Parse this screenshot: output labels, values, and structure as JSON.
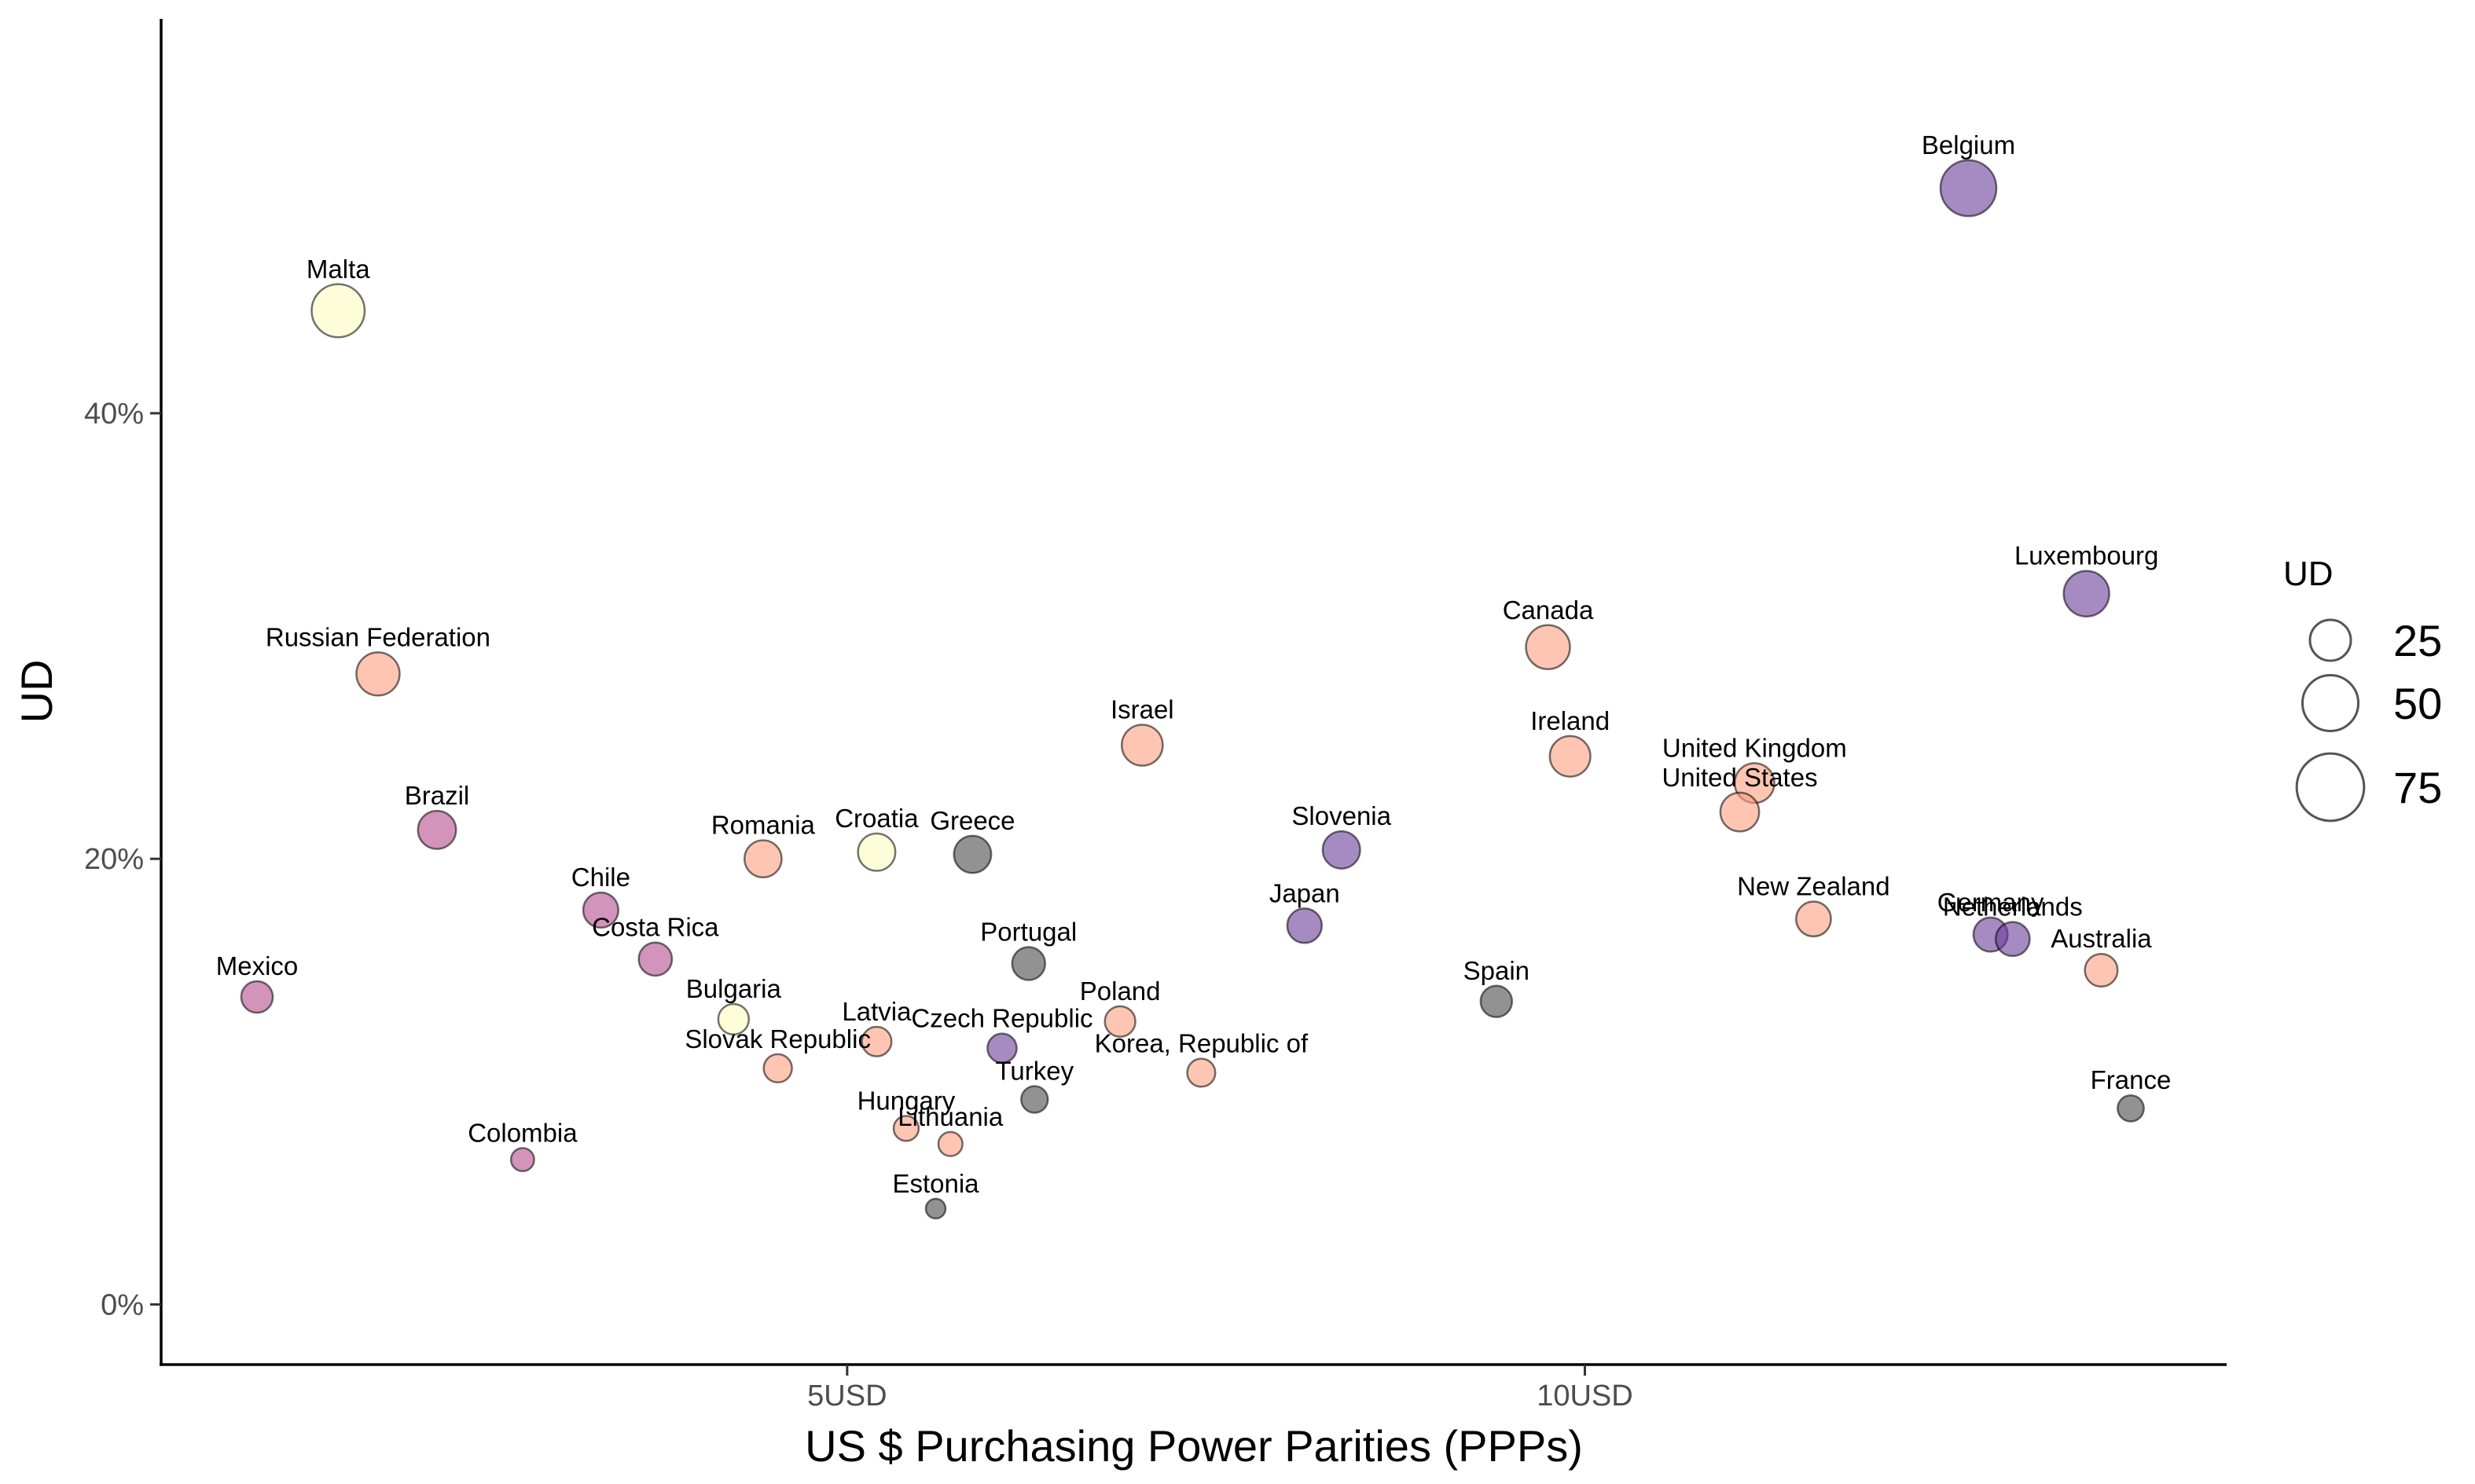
{
  "chart_data": {
    "type": "scatter",
    "xlabel": "US $ Purchasing Power Parities (PPPs)",
    "ylabel": "UD",
    "xlim": [
      0.35,
      14.35
    ],
    "ylim": [
      -2.7,
      57.7
    ],
    "x_ticks": [
      {
        "value": 5,
        "label": "5USD"
      },
      {
        "value": 10,
        "label": "10USD"
      }
    ],
    "y_ticks": [
      {
        "value": 0,
        "label": "0%"
      },
      {
        "value": 20,
        "label": "20%"
      },
      {
        "value": 40,
        "label": "40%"
      }
    ],
    "grid": false,
    "legend": {
      "title": "UD",
      "placement": "right",
      "entries": [
        {
          "value": 25,
          "label": "25"
        },
        {
          "value": 50,
          "label": "50"
        },
        {
          "value": 75,
          "label": "75"
        }
      ]
    },
    "colors": {
      "dark": "#4a4a4a",
      "purple": "#6b3d9a",
      "magenta": "#b44c8c",
      "salmon": "#fc9e7f",
      "cream": "#fcfdbf"
    },
    "points": [
      {
        "label": "Belgium",
        "x": 12.6,
        "y": 50.1,
        "color": "purple"
      },
      {
        "label": "Malta",
        "x": 1.55,
        "y": 44.6,
        "color": "cream"
      },
      {
        "label": "Luxembourg",
        "x": 13.4,
        "y": 31.9,
        "color": "purple"
      },
      {
        "label": "Canada",
        "x": 9.75,
        "y": 29.5,
        "color": "salmon"
      },
      {
        "label": "Russian Federation",
        "x": 1.82,
        "y": 28.3,
        "color": "salmon"
      },
      {
        "label": "Israel",
        "x": 7.0,
        "y": 25.1,
        "color": "salmon"
      },
      {
        "label": "Ireland",
        "x": 9.9,
        "y": 24.6,
        "color": "salmon"
      },
      {
        "label": "United Kingdom",
        "x": 11.15,
        "y": 23.4,
        "color": "salmon"
      },
      {
        "label": "United States",
        "x": 11.05,
        "y": 22.1,
        "color": "salmon"
      },
      {
        "label": "Brazil",
        "x": 2.22,
        "y": 21.3,
        "color": "magenta"
      },
      {
        "label": "Slovenia",
        "x": 8.35,
        "y": 20.4,
        "color": "purple"
      },
      {
        "label": "Croatia",
        "x": 5.2,
        "y": 20.3,
        "color": "cream"
      },
      {
        "label": "Greece",
        "x": 5.85,
        "y": 20.2,
        "color": "dark"
      },
      {
        "label": "Romania",
        "x": 4.43,
        "y": 20.0,
        "color": "salmon"
      },
      {
        "label": "Chile",
        "x": 3.33,
        "y": 17.7,
        "color": "magenta"
      },
      {
        "label": "New Zealand",
        "x": 11.55,
        "y": 17.3,
        "color": "salmon"
      },
      {
        "label": "Japan",
        "x": 8.1,
        "y": 17.0,
        "color": "purple"
      },
      {
        "label": "Germany",
        "x": 12.75,
        "y": 16.6,
        "color": "purple"
      },
      {
        "label": "Netherlands",
        "x": 12.9,
        "y": 16.4,
        "color": "purple"
      },
      {
        "label": "Costa Rica",
        "x": 3.7,
        "y": 15.5,
        "color": "magenta"
      },
      {
        "label": "Portugal",
        "x": 6.23,
        "y": 15.3,
        "color": "dark"
      },
      {
        "label": "Australia",
        "x": 13.5,
        "y": 15.0,
        "color": "salmon"
      },
      {
        "label": "Mexico",
        "x": 1.0,
        "y": 13.8,
        "color": "magenta"
      },
      {
        "label": "Spain",
        "x": 9.4,
        "y": 13.6,
        "color": "dark"
      },
      {
        "label": "Bulgaria",
        "x": 4.23,
        "y": 12.8,
        "color": "cream"
      },
      {
        "label": "Poland",
        "x": 6.85,
        "y": 12.7,
        "color": "salmon"
      },
      {
        "label": "Latvia",
        "x": 5.2,
        "y": 11.8,
        "color": "salmon"
      },
      {
        "label": "Czech Republic",
        "x": 6.05,
        "y": 11.5,
        "color": "purple"
      },
      {
        "label": "Slovak Republic",
        "x": 4.53,
        "y": 10.6,
        "color": "salmon"
      },
      {
        "label": "Korea, Republic of",
        "x": 7.4,
        "y": 10.4,
        "color": "salmon"
      },
      {
        "label": "Turkey",
        "x": 6.27,
        "y": 9.2,
        "color": "dark"
      },
      {
        "label": "France",
        "x": 13.7,
        "y": 8.8,
        "color": "dark"
      },
      {
        "label": "Hungary",
        "x": 5.4,
        "y": 7.9,
        "color": "salmon"
      },
      {
        "label": "Lithuania",
        "x": 5.7,
        "y": 7.2,
        "color": "salmon"
      },
      {
        "label": "Colombia",
        "x": 2.8,
        "y": 6.5,
        "color": "magenta"
      },
      {
        "label": "Estonia",
        "x": 5.6,
        "y": 4.3,
        "color": "dark"
      }
    ]
  }
}
